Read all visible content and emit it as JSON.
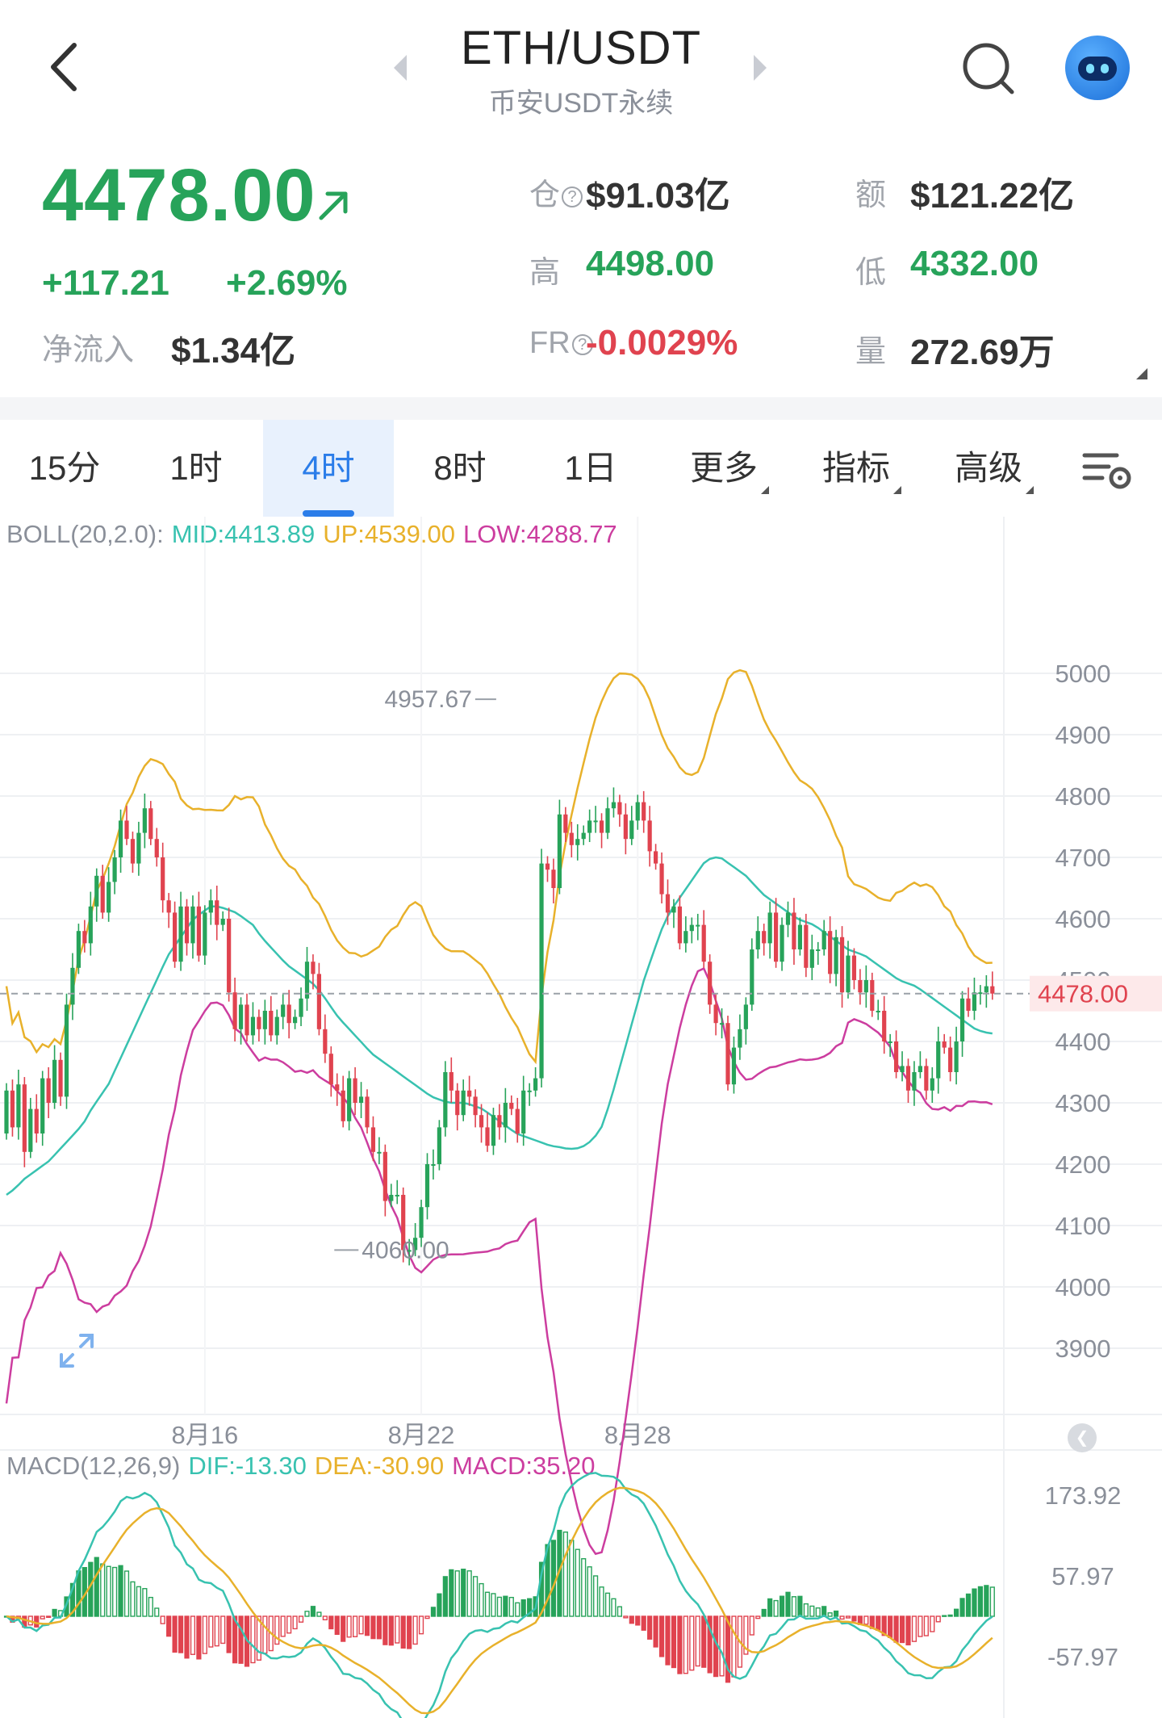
{
  "header": {
    "title": "ETH/USDT",
    "subtitle": "币安USDT永续",
    "icons": {
      "back": "chevron-left-icon",
      "search": "search-icon",
      "avatar": "robot-avatar-icon"
    }
  },
  "ticker": {
    "price": "4478.00",
    "change": "+117.21",
    "change_pct": "+2.69%",
    "netflow_label": "净流入",
    "netflow_value": "$1.34亿",
    "oi_label": "仓",
    "oi_value": "$91.03亿",
    "turnover_label": "额",
    "turnover_value": "$121.22亿",
    "high_label": "高",
    "high_value": "4498.00",
    "low_label": "低",
    "low_value": "4332.00",
    "fr_label": "FR",
    "fr_value": "-0.0029%",
    "volume_label": "量",
    "volume_value": "272.69万",
    "colors": {
      "up": "#27a35a",
      "down": "#e0434f"
    }
  },
  "tabs": [
    {
      "label": "15分",
      "active": false
    },
    {
      "label": "1时",
      "active": false
    },
    {
      "label": "4时",
      "active": true
    },
    {
      "label": "8时",
      "active": false
    },
    {
      "label": "1日",
      "active": false
    },
    {
      "label": "更多",
      "active": false
    },
    {
      "label": "指标",
      "active": false
    },
    {
      "label": "高级",
      "active": false
    }
  ],
  "boll_legend": {
    "name": "BOLL(20,2.0):",
    "mid": "MID:4413.89",
    "up": "UP:4539.00",
    "low": "LOW:4288.77",
    "colors": {
      "mid": "#38c2b0",
      "up": "#e8b12b",
      "low": "#cc3d9f"
    }
  },
  "macd_legend": {
    "name": "MACD(12,26,9)",
    "dif": "DIF:-13.30",
    "dea": "DEA:-30.90",
    "macd": "MACD:35.20"
  },
  "chart_data": [
    {
      "type": "candlestick",
      "title": "",
      "y_ticks": [
        5000,
        4900,
        4800,
        4700,
        4600,
        4500,
        4400,
        4300,
        4200,
        4100,
        4000,
        3900
      ],
      "y_tick_labels": [
        "5000",
        "4900",
        "4800",
        "4700",
        "4600",
        "4500",
        "4400",
        "4300",
        "4200",
        "4100",
        "4000",
        "3900"
      ],
      "ylim": [
        3830,
        5120
      ],
      "x_labels": [
        {
          "label": "8月16",
          "index": 33
        },
        {
          "label": "8月22",
          "index": 69
        },
        {
          "label": "8月28",
          "index": 105
        }
      ],
      "current_price": 4478.0,
      "current_price_label": "4478.00",
      "max_marker": {
        "value": 4957.67,
        "label": "4957.67",
        "index": 82
      },
      "min_marker": {
        "value": 4060.0,
        "label": "4060.00",
        "index": 54
      },
      "ohlc_open": [
        4250,
        4320,
        4260,
        4330,
        4220,
        4290,
        4250,
        4340,
        4300,
        4370,
        4310,
        4460,
        4520,
        4580,
        4560,
        4620,
        4670,
        4610,
        4660,
        4700,
        4760,
        4730,
        4690,
        4740,
        4780,
        4730,
        4700,
        4630,
        4610,
        4530,
        4620,
        4560,
        4620,
        4540,
        4610,
        4630,
        4590,
        4600,
        4480,
        4420,
        4460,
        4410,
        4440,
        4420,
        4450,
        4410,
        4440,
        4460,
        4430,
        4440,
        4470,
        4530,
        4510,
        4420,
        4380,
        4330,
        4320,
        4270,
        4340,
        4300,
        4310,
        4260,
        4220,
        4220,
        4140,
        4150,
        4150,
        4060,
        4060,
        4080,
        4130,
        4200,
        4200,
        4260,
        4350,
        4320,
        4280,
        4320,
        4310,
        4280,
        4260,
        4230,
        4280,
        4260,
        4300,
        4290,
        4250,
        4320,
        4320,
        4340,
        4690,
        4680,
        4650,
        4770,
        4740,
        4720,
        4730,
        4740,
        4760,
        4760,
        4740,
        4780,
        4790,
        4770,
        4730,
        4760,
        4790,
        4760,
        4710,
        4690,
        4640,
        4610,
        4620,
        4560,
        4580,
        4590,
        4590,
        4530,
        4460,
        4430,
        4430,
        4330,
        4390,
        4420,
        4460,
        4550,
        4580,
        4560,
        4610,
        4530,
        4590,
        4610,
        4550,
        4590,
        4520,
        4550,
        4550,
        4580,
        4510,
        4570,
        4480,
        4540,
        4500,
        4480,
        4500,
        4450,
        4450,
        4400,
        4400,
        4350,
        4360,
        4320,
        4350,
        4360,
        4320,
        4340,
        4400,
        4390,
        4350,
        4400,
        4470,
        4450,
        4480,
        4480,
        4490
      ],
      "ohlc_close": [
        4320,
        4260,
        4330,
        4220,
        4290,
        4250,
        4340,
        4300,
        4370,
        4310,
        4460,
        4520,
        4580,
        4560,
        4620,
        4670,
        4610,
        4660,
        4700,
        4760,
        4730,
        4690,
        4740,
        4780,
        4730,
        4700,
        4630,
        4610,
        4530,
        4620,
        4560,
        4620,
        4540,
        4610,
        4630,
        4590,
        4600,
        4480,
        4420,
        4460,
        4410,
        4440,
        4420,
        4450,
        4410,
        4440,
        4460,
        4430,
        4440,
        4470,
        4530,
        4510,
        4420,
        4380,
        4330,
        4320,
        4270,
        4340,
        4300,
        4310,
        4260,
        4220,
        4220,
        4140,
        4150,
        4150,
        4060,
        4060,
        4080,
        4130,
        4200,
        4200,
        4260,
        4350,
        4320,
        4280,
        4320,
        4310,
        4280,
        4260,
        4230,
        4280,
        4260,
        4300,
        4290,
        4250,
        4320,
        4320,
        4340,
        4690,
        4680,
        4650,
        4770,
        4740,
        4720,
        4730,
        4740,
        4760,
        4760,
        4740,
        4780,
        4790,
        4770,
        4730,
        4760,
        4790,
        4760,
        4710,
        4690,
        4640,
        4610,
        4620,
        4560,
        4580,
        4590,
        4590,
        4530,
        4460,
        4430,
        4430,
        4330,
        4390,
        4420,
        4460,
        4550,
        4580,
        4560,
        4610,
        4530,
        4590,
        4610,
        4550,
        4590,
        4520,
        4550,
        4550,
        4580,
        4510,
        4570,
        4480,
        4540,
        4500,
        4480,
        4500,
        4450,
        4450,
        4400,
        4400,
        4350,
        4360,
        4320,
        4350,
        4360,
        4320,
        4340,
        4400,
        4390,
        4350,
        4400,
        4470,
        4450,
        4480,
        4480,
        4490,
        4478
      ],
      "boll_mid": [
        4150,
        4160,
        4175,
        4185,
        4195,
        4205,
        4220,
        4235,
        4250,
        4265,
        4290,
        4310,
        4330,
        4360,
        4390,
        4420,
        4450,
        4480,
        4510,
        4540,
        4560,
        4580,
        4600,
        4610,
        4620,
        4620,
        4615,
        4610,
        4600,
        4590,
        4570,
        4555,
        4540,
        4525,
        4515,
        4505,
        4495,
        4480,
        4460,
        4440,
        4425,
        4410,
        4395,
        4380,
        4370,
        4360,
        4350,
        4340,
        4330,
        4320,
        4310,
        4305,
        4300,
        4300,
        4300,
        4295,
        4290,
        4280,
        4270,
        4260,
        4250,
        4245,
        4240,
        4235,
        4230,
        4228,
        4225,
        4225,
        4230,
        4240,
        4260,
        4300,
        4350,
        4400,
        4450,
        4500,
        4540,
        4580,
        4610,
        4630,
        4650,
        4670,
        4690,
        4700,
        4700,
        4690,
        4680,
        4670,
        4655,
        4640,
        4630,
        4620,
        4610,
        4600,
        4595,
        4590,
        4580,
        4570,
        4560,
        4550,
        4545,
        4540,
        4530,
        4520,
        4510,
        4500,
        4495,
        4490,
        4480,
        4470,
        4460,
        4450,
        4440,
        4430,
        4420,
        4415,
        4413
      ]
    },
    {
      "type": "bar",
      "title": "",
      "y_ticks": [
        173.92,
        57.97,
        -57.97
      ],
      "y_tick_labels": [
        "173.92",
        "57.97",
        "-57.97"
      ],
      "ylim": [
        -100,
        210
      ]
    }
  ]
}
